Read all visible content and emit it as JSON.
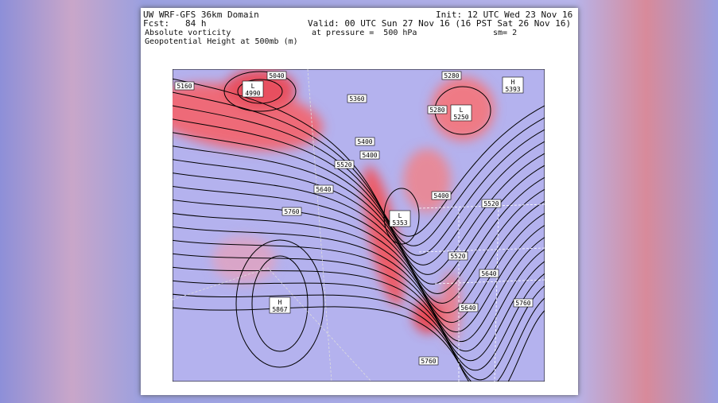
{
  "header": {
    "title": "UW WRF-GFS 36km Domain",
    "forecast": "Fcst:   84 h",
    "field1": "Absolute vorticity",
    "field2": "Geopotential Height at 500mb (m)",
    "init": "Init: 12 UTC Wed 23 Nov 16",
    "valid": "Valid: 00 UTC Sun 27 Nov 16 (16 PST Sat 26 Nov 16)",
    "pressure": "at pressure =  500 hPa",
    "smoothing": "sm= 2"
  },
  "map": {
    "contour_labels": [
      "5160",
      "5040",
      "5360",
      "5280",
      "5280",
      "5400",
      "5400",
      "5520",
      "5640",
      "5400",
      "5520",
      "5760",
      "5520",
      "5640",
      "5640",
      "5760",
      "5760"
    ],
    "centers": [
      {
        "type": "L",
        "value": "4990"
      },
      {
        "type": "H",
        "value": "5393"
      },
      {
        "type": "L",
        "value": "5250"
      },
      {
        "type": "L",
        "value": "5353"
      },
      {
        "type": "H",
        "value": "5867"
      }
    ]
  }
}
